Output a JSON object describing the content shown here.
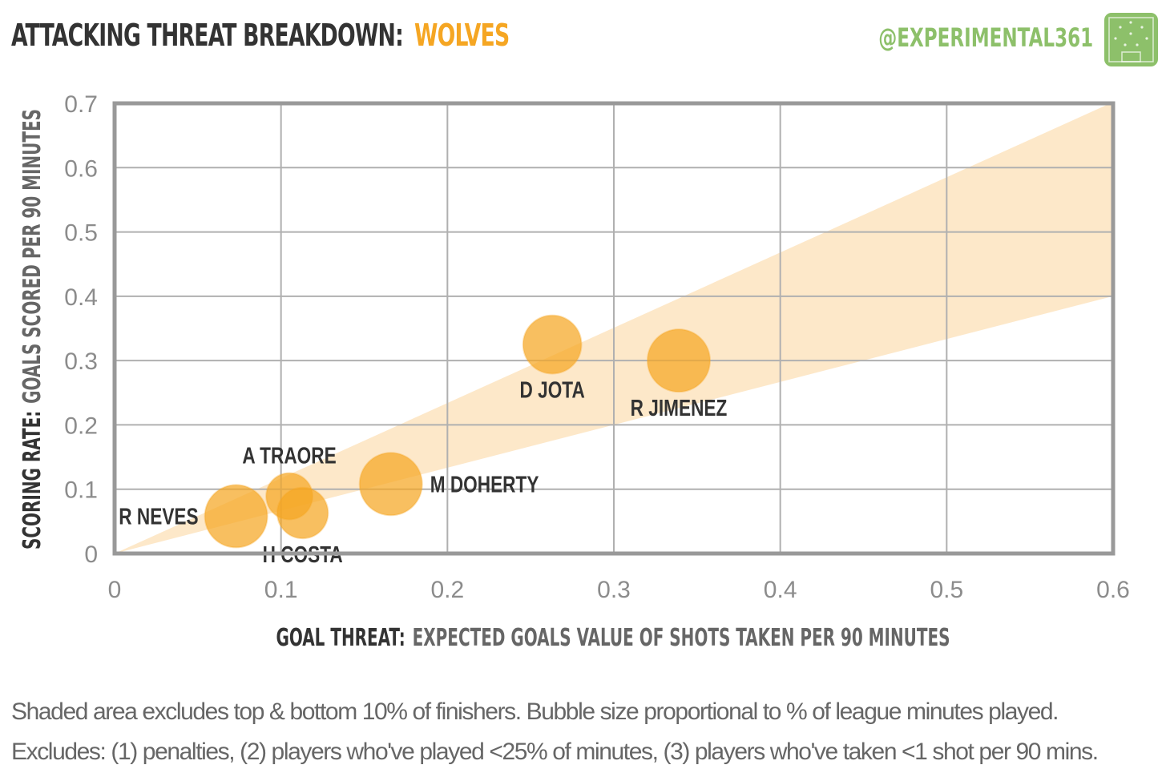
{
  "header": {
    "title": "ATTACKING THREAT BREAKDOWN:",
    "team": "WOLVES",
    "handle": "@EXPERIMENTAL361",
    "logo_icon": "pitch-logo-icon"
  },
  "colors": {
    "bubble": "#f5a623",
    "band": "#fde4c0",
    "frame": "#999999",
    "grid": "#b0b0b0",
    "brand_green": "#8dc06a"
  },
  "chart_data": {
    "type": "scatter",
    "xlabel_bold": "GOAL THREAT:",
    "xlabel_rest": "EXPECTED GOALS VALUE OF SHOTS TAKEN PER 90 MINUTES",
    "ylabel_bold": "SCORING RATE:",
    "ylabel_rest": "GOALS SCORED PER 90 MINUTES",
    "xlim": [
      0,
      0.6
    ],
    "ylim": [
      0,
      0.7
    ],
    "xticks": [
      "0",
      "0.1",
      "0.2",
      "0.3",
      "0.4",
      "0.5",
      "0.6"
    ],
    "yticks": [
      "0",
      "0.1",
      "0.2",
      "0.3",
      "0.4",
      "0.5",
      "0.6",
      "0.7"
    ],
    "grid": true,
    "band": {
      "upper_slope": 1.17,
      "lower_slope": 0.667
    },
    "points": [
      {
        "name": "R NEVES",
        "x": 0.073,
        "y": 0.058,
        "size": 1.0,
        "label_side": "left"
      },
      {
        "name": "A TRAORE",
        "x": 0.105,
        "y": 0.089,
        "size": 0.55,
        "label_side": "above"
      },
      {
        "name": "H COSTA",
        "x": 0.113,
        "y": 0.063,
        "size": 0.66,
        "label_side": "below"
      },
      {
        "name": "M DOHERTY",
        "x": 0.166,
        "y": 0.108,
        "size": 1.0,
        "label_side": "right"
      },
      {
        "name": "D JOTA",
        "x": 0.263,
        "y": 0.325,
        "size": 0.87,
        "label_side": "below"
      },
      {
        "name": "R JIMENEZ",
        "x": 0.339,
        "y": 0.3,
        "size": 1.0,
        "label_side": "below"
      }
    ]
  },
  "footnote": {
    "line1": "Shaded area excludes top & bottom  10% of finishers. Bubble size proportional to  % of league minutes played.",
    "line2": "Excludes: (1) penalties, (2) players who've played <25% of minutes, (3) players who've taken <1 shot per 90 mins."
  }
}
